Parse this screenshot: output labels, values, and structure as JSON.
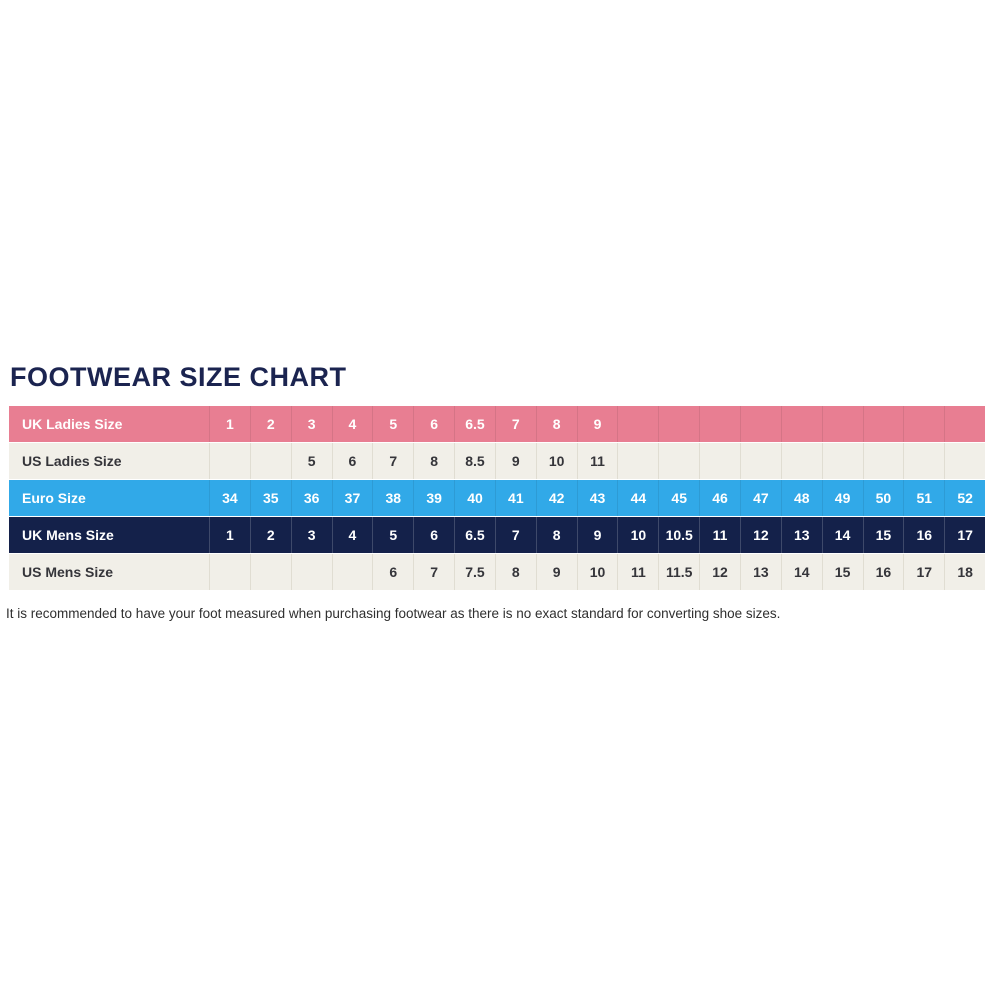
{
  "title": "FOOTWEAR SIZE CHART",
  "footnote": "It is recommended to have your foot measured when purchasing footwear as there is no exact standard for converting shoe sizes.",
  "colors": {
    "title_navy": "#1b2450",
    "row_pink": "#e87e92",
    "row_blue": "#31a9e8",
    "row_navy": "#14214a",
    "row_cream": "#f1efe8",
    "cell_text_dark": "#35353a",
    "cell_text_light": "#ffffff"
  },
  "chart_data": {
    "type": "table",
    "title": "FOOTWEAR SIZE CHART",
    "column_count": 19,
    "rows": [
      {
        "label": "UK Ladies Size",
        "style": "pink",
        "values": [
          "1",
          "2",
          "3",
          "4",
          "5",
          "6",
          "6.5",
          "7",
          "8",
          "9",
          "",
          "",
          "",
          "",
          "",
          "",
          "",
          "",
          ""
        ]
      },
      {
        "label": "US Ladies Size",
        "style": "light",
        "values": [
          "",
          "",
          "5",
          "6",
          "7",
          "8",
          "8.5",
          "9",
          "10",
          "11",
          "",
          "",
          "",
          "",
          "",
          "",
          "",
          "",
          ""
        ]
      },
      {
        "label": "Euro Size",
        "style": "blue",
        "values": [
          "34",
          "35",
          "36",
          "37",
          "38",
          "39",
          "40",
          "41",
          "42",
          "43",
          "44",
          "45",
          "46",
          "47",
          "48",
          "49",
          "50",
          "51",
          "52"
        ]
      },
      {
        "label": "UK Mens Size",
        "style": "navy",
        "values": [
          "1",
          "2",
          "3",
          "4",
          "5",
          "6",
          "6.5",
          "7",
          "8",
          "9",
          "10",
          "10.5",
          "11",
          "12",
          "13",
          "14",
          "15",
          "16",
          "17"
        ]
      },
      {
        "label": "US Mens Size",
        "style": "light",
        "values": [
          "",
          "",
          "",
          "",
          "6",
          "7",
          "7.5",
          "8",
          "9",
          "10",
          "11",
          "11.5",
          "12",
          "13",
          "14",
          "15",
          "16",
          "17",
          "18"
        ]
      }
    ],
    "notes": "It is recommended to have your foot measured when purchasing footwear as there is no exact standard for converting shoe sizes."
  }
}
